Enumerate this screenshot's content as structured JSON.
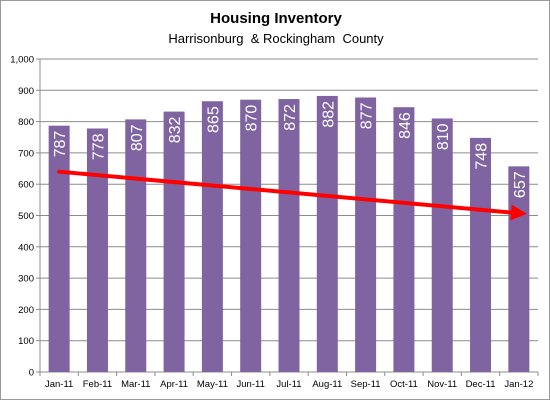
{
  "chart_data": {
    "type": "bar",
    "title": "Housing Inventory",
    "subtitle": "Harrisonburg  & Rockingham  County",
    "categories": [
      "Jan-11",
      "Feb-11",
      "Mar-11",
      "Apr-11",
      "May-11",
      "Jun-11",
      "Jul-11",
      "Aug-11",
      "Sep-11",
      "Oct-11",
      "Nov-11",
      "Dec-11",
      "Jan-12"
    ],
    "values": [
      787,
      778,
      807,
      832,
      865,
      870,
      872,
      882,
      877,
      846,
      810,
      748,
      657
    ],
    "data_labels": [
      "787",
      "778",
      "807",
      "832",
      "865",
      "870",
      "872",
      "882",
      "877",
      "846",
      "810",
      "748",
      "657"
    ],
    "ylim": [
      0,
      1000
    ],
    "yticks": [
      0,
      100,
      200,
      300,
      400,
      500,
      600,
      700,
      800,
      900,
      1000
    ],
    "ytick_labels": [
      "0",
      "100",
      "200",
      "300",
      "400",
      "500",
      "600",
      "700",
      "800",
      "900",
      "1,000"
    ],
    "xlabel": "",
    "ylabel": "",
    "grid": true,
    "legend": "none",
    "bar_color": "#8064a2",
    "label_color": "#ffffff",
    "trend_arrow": {
      "color": "#ff0000",
      "from": {
        "x": "Jan-11",
        "y": 640
      },
      "to": {
        "x": "Jan-12",
        "y": 505
      }
    }
  }
}
